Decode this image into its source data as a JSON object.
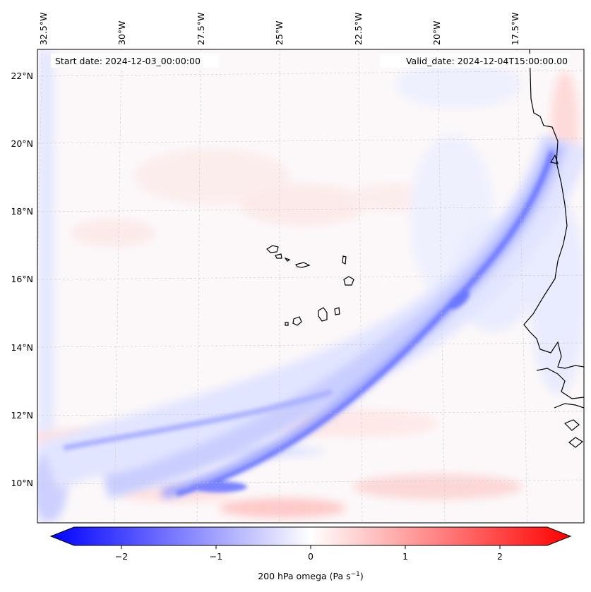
{
  "map": {
    "start_date_label": "Start date: 2024-12-03_00:00:00",
    "valid_date_label": "Valid_date: 2024-12-04T15:00:00.00",
    "top_lon_labels": [
      "32.5°W",
      "30°W",
      "27.5°W",
      "25°W",
      "22.5°W",
      "20°W",
      "17.5°W"
    ],
    "left_lat_labels": [
      "22°N",
      "20°N",
      "18°N",
      "16°N",
      "14°N",
      "12°N",
      "10°N"
    ],
    "coastline_color": "#000000",
    "gridline_color": "#b0b0b0",
    "features": [
      "cape-verde-islands",
      "west-africa-coastline",
      "diagonal-negative-omega-band"
    ]
  },
  "colorbar": {
    "label": "200 hPa omega (Pa s",
    "label_sup": "−1",
    "label_close": ")",
    "ticks": [
      "−2",
      "−1",
      "0",
      "1",
      "2"
    ],
    "tick_values": [
      -2,
      -1,
      0,
      1,
      2
    ],
    "range": [
      -2.5,
      2.5
    ],
    "colormap": "bwr",
    "low_color": "#0000ff",
    "mid_color": "#ffffff",
    "high_color": "#ff0000"
  }
}
